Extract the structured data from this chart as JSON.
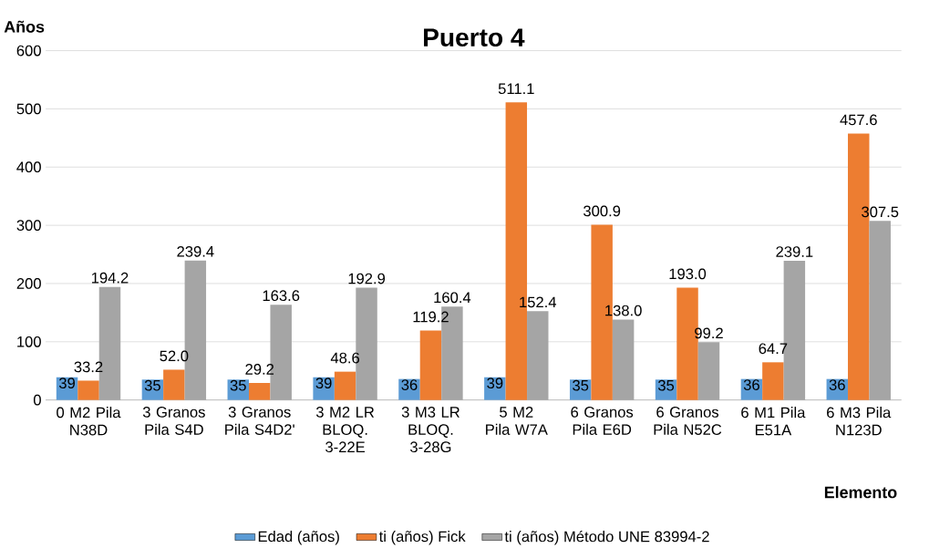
{
  "chart_data": {
    "type": "bar",
    "title": "Puerto 4",
    "xlabel": "Elemento",
    "ylabel": "Años",
    "categories": [
      "0 M2 Pila N38D",
      "3 Granos Pila S4D",
      "3 Granos Pila S4D2'",
      "3 M2 LR BLOQ. 3-22E",
      "3 M3 LR BLOQ. 3-28G",
      "5 M2 Pila W7A",
      "6 Granos Pila E6D",
      "6 Granos Pila N52C",
      "6 M1 Pila E51A",
      "6 M3 Pila N123D"
    ],
    "series": [
      {
        "name": "Edad (años)",
        "color": "#5b9bd5",
        "values": [
          39,
          35,
          35,
          39,
          36,
          39,
          35,
          35,
          36,
          36
        ],
        "value_labels": [
          "39",
          "35",
          "35",
          "39",
          "36",
          "39",
          "35",
          "35",
          "36",
          "36"
        ]
      },
      {
        "name": "ti (años) Fick",
        "color": "#ed7d31",
        "values": [
          33.2,
          52.0,
          29.2,
          48.6,
          119.2,
          511.1,
          300.9,
          193.0,
          64.7,
          457.6
        ],
        "value_labels": [
          "33.2",
          "52.0",
          "29.2",
          "48.6",
          "119.2",
          "511.1",
          "300.9",
          "193.0",
          "64.7",
          "457.6"
        ]
      },
      {
        "name": "ti (años) Método UNE 83994-2",
        "color": "#a5a5a5",
        "values": [
          194.2,
          239.4,
          163.6,
          192.9,
          160.4,
          152.4,
          138.0,
          99.2,
          239.1,
          307.5
        ],
        "value_labels": [
          "194.2",
          "239.4",
          "163.6",
          "192.9",
          "160.4",
          "152.4",
          "138.0",
          "99.2",
          "239.1",
          "307.5"
        ]
      }
    ],
    "ylim": [
      0,
      600
    ],
    "yticks": [
      0,
      100,
      200,
      300,
      400,
      500,
      600
    ],
    "grid": "y",
    "legend": "bottom"
  }
}
